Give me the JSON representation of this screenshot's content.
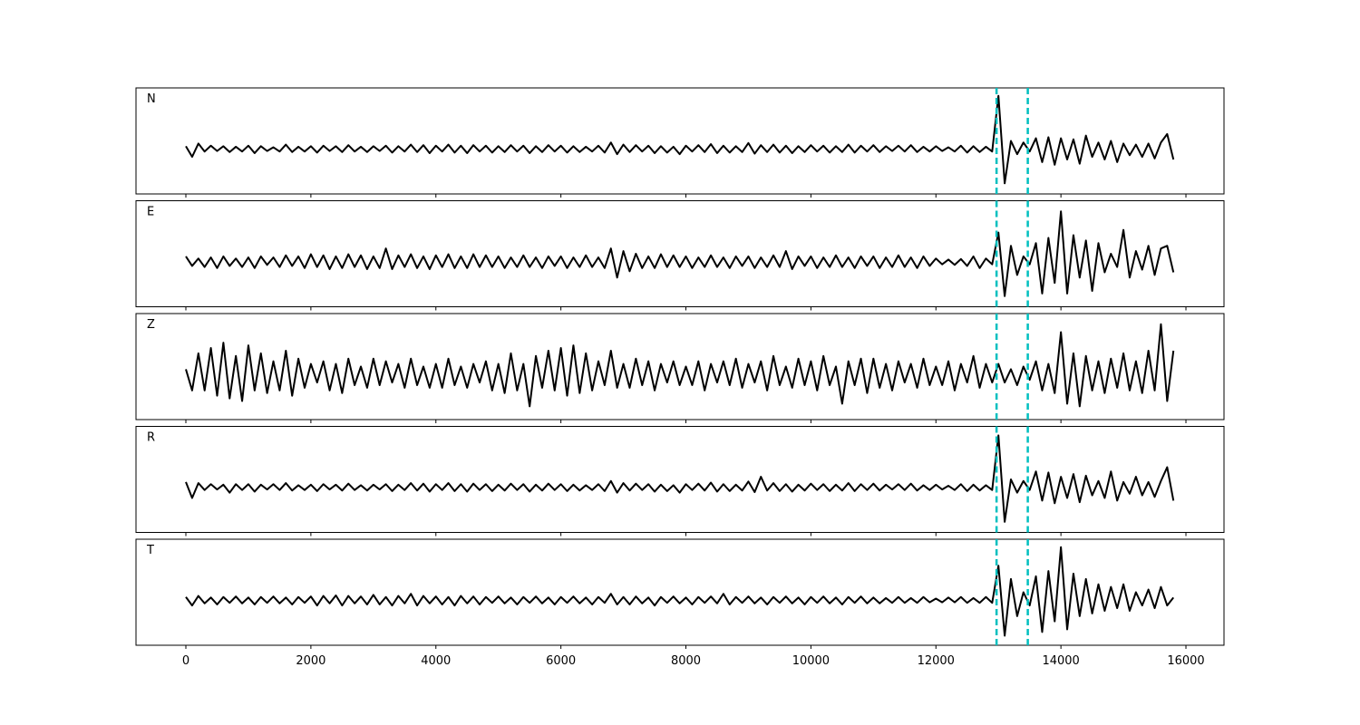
{
  "chart_data": {
    "type": "line",
    "x": [
      0,
      100,
      200,
      300,
      400,
      500,
      600,
      700,
      800,
      900,
      1000,
      1100,
      1200,
      1300,
      1400,
      1500,
      1600,
      1700,
      1800,
      1900,
      2000,
      2100,
      2200,
      2300,
      2400,
      2500,
      2600,
      2700,
      2800,
      2900,
      3000,
      3100,
      3200,
      3300,
      3400,
      3500,
      3600,
      3700,
      3800,
      3900,
      4000,
      4100,
      4200,
      4300,
      4400,
      4500,
      4600,
      4700,
      4800,
      4900,
      5000,
      5100,
      5200,
      5300,
      5400,
      5500,
      5600,
      5700,
      5800,
      5900,
      6000,
      6100,
      6200,
      6300,
      6400,
      6500,
      6600,
      6700,
      6800,
      6900,
      7000,
      7100,
      7200,
      7300,
      7400,
      7500,
      7600,
      7700,
      7800,
      7900,
      8000,
      8100,
      8200,
      8300,
      8400,
      8500,
      8600,
      8700,
      8800,
      8900,
      9000,
      9100,
      9200,
      9300,
      9400,
      9500,
      9600,
      9700,
      9800,
      9900,
      10000,
      10100,
      10200,
      10300,
      10400,
      10500,
      10600,
      10700,
      10800,
      10900,
      11000,
      11100,
      11200,
      11300,
      11400,
      11500,
      11600,
      11700,
      11800,
      11900,
      12000,
      12100,
      12200,
      12300,
      12400,
      12500,
      12600,
      12700,
      12800,
      12900,
      13000,
      13100,
      13200,
      13300,
      13400,
      13500,
      13600,
      13700,
      13800,
      13900,
      14000,
      14100,
      14200,
      14300,
      14400,
      14500,
      14600,
      14700,
      14800,
      14900,
      15000,
      15100,
      15200,
      15300,
      15400,
      15500,
      15600,
      15700,
      15800
    ],
    "series": [
      {
        "name": "N",
        "color": "#000000",
        "values": [
          0.05,
          -0.15,
          0.1,
          -0.05,
          0.06,
          -0.04,
          0.05,
          -0.06,
          0.04,
          -0.05,
          0.06,
          -0.08,
          0.05,
          -0.04,
          0.03,
          -0.05,
          0.08,
          -0.06,
          0.04,
          -0.05,
          0.05,
          -0.07,
          0.06,
          -0.04,
          0.05,
          -0.06,
          0.07,
          -0.05,
          0.04,
          -0.06,
          0.05,
          -0.04,
          0.06,
          -0.07,
          0.05,
          -0.05,
          0.08,
          -0.06,
          0.07,
          -0.08,
          0.06,
          -0.05,
          0.08,
          -0.07,
          0.06,
          -0.08,
          0.07,
          -0.05,
          0.06,
          -0.07,
          0.05,
          -0.06,
          0.07,
          -0.05,
          0.06,
          -0.08,
          0.05,
          -0.06,
          0.07,
          -0.05,
          0.06,
          -0.07,
          0.05,
          -0.06,
          0.04,
          -0.05,
          0.06,
          -0.07,
          0.12,
          -0.1,
          0.08,
          -0.06,
          0.07,
          -0.05,
          0.06,
          -0.08,
          0.05,
          -0.07,
          0.04,
          -0.1,
          0.06,
          -0.05,
          0.07,
          -0.06,
          0.09,
          -0.08,
          0.06,
          -0.07,
          0.05,
          -0.06,
          0.11,
          -0.09,
          0.07,
          -0.06,
          0.08,
          -0.07,
          0.06,
          -0.08,
          0.05,
          -0.06,
          0.07,
          -0.05,
          0.06,
          -0.07,
          0.05,
          -0.06,
          0.08,
          -0.07,
          0.06,
          -0.05,
          0.07,
          -0.06,
          0.05,
          -0.04,
          0.06,
          -0.05,
          0.07,
          -0.06,
          0.04,
          -0.05,
          0.05,
          -0.04,
          0.03,
          -0.05,
          0.06,
          -0.07,
          0.05,
          -0.06,
          0.04,
          -0.05,
          1.0,
          -0.65,
          0.15,
          -0.1,
          0.12,
          -0.05,
          0.2,
          -0.25,
          0.22,
          -0.3,
          0.2,
          -0.2,
          0.18,
          -0.28,
          0.25,
          -0.15,
          0.12,
          -0.2,
          0.15,
          -0.25,
          0.1,
          -0.12,
          0.08,
          -0.15,
          0.1,
          -0.18,
          0.12,
          0.28,
          -0.2
        ]
      },
      {
        "name": "E",
        "color": "#000000",
        "values": [
          0.1,
          -0.08,
          0.06,
          -0.1,
          0.08,
          -0.12,
          0.1,
          -0.08,
          0.06,
          -0.1,
          0.08,
          -0.12,
          0.1,
          -0.06,
          0.08,
          -0.1,
          0.12,
          -0.08,
          0.1,
          -0.12,
          0.14,
          -0.1,
          0.12,
          -0.14,
          0.1,
          -0.12,
          0.14,
          -0.1,
          0.12,
          -0.14,
          0.1,
          -0.12,
          0.25,
          -0.14,
          0.12,
          -0.1,
          0.14,
          -0.12,
          0.1,
          -0.14,
          0.12,
          -0.1,
          0.14,
          -0.12,
          0.1,
          -0.12,
          0.14,
          -0.1,
          0.12,
          -0.1,
          0.1,
          -0.12,
          0.08,
          -0.1,
          0.12,
          -0.1,
          0.08,
          -0.12,
          0.1,
          -0.08,
          0.1,
          -0.12,
          0.08,
          -0.1,
          0.12,
          -0.1,
          0.08,
          -0.12,
          0.25,
          -0.3,
          0.2,
          -0.18,
          0.15,
          -0.12,
          0.1,
          -0.12,
          0.14,
          -0.1,
          0.12,
          -0.1,
          0.1,
          -0.12,
          0.08,
          -0.1,
          0.12,
          -0.1,
          0.08,
          -0.12,
          0.1,
          -0.08,
          0.1,
          -0.12,
          0.08,
          -0.1,
          0.12,
          -0.1,
          0.2,
          -0.14,
          0.1,
          -0.08,
          0.1,
          -0.12,
          0.08,
          -0.1,
          0.12,
          -0.1,
          0.08,
          -0.12,
          0.1,
          -0.08,
          0.1,
          -0.12,
          0.08,
          -0.1,
          0.12,
          -0.1,
          0.08,
          -0.12,
          0.1,
          -0.08,
          0.06,
          -0.05,
          0.04,
          -0.06,
          0.05,
          -0.08,
          0.1,
          -0.12,
          0.06,
          -0.05,
          0.55,
          -0.65,
          0.3,
          -0.25,
          0.1,
          -0.05,
          0.35,
          -0.6,
          0.45,
          -0.4,
          0.95,
          -0.6,
          0.5,
          -0.3,
          0.4,
          -0.55,
          0.35,
          -0.2,
          0.15,
          -0.1,
          0.6,
          -0.3,
          0.2,
          -0.15,
          0.3,
          -0.25,
          0.25,
          0.3,
          -0.2
        ]
      },
      {
        "name": "Z",
        "color": "#000000",
        "values": [
          0.1,
          -0.3,
          0.4,
          -0.3,
          0.5,
          -0.4,
          0.6,
          -0.45,
          0.35,
          -0.5,
          0.55,
          -0.3,
          0.4,
          -0.35,
          0.25,
          -0.3,
          0.45,
          -0.4,
          0.3,
          -0.25,
          0.2,
          -0.15,
          0.25,
          -0.3,
          0.2,
          -0.35,
          0.3,
          -0.2,
          0.15,
          -0.25,
          0.3,
          -0.2,
          0.25,
          -0.15,
          0.2,
          -0.25,
          0.3,
          -0.2,
          0.15,
          -0.25,
          0.2,
          -0.25,
          0.3,
          -0.2,
          0.15,
          -0.25,
          0.2,
          -0.15,
          0.25,
          -0.3,
          0.2,
          -0.35,
          0.4,
          -0.3,
          0.2,
          -0.6,
          0.35,
          -0.25,
          0.45,
          -0.3,
          0.5,
          -0.4,
          0.55,
          -0.35,
          0.4,
          -0.3,
          0.25,
          -0.2,
          0.45,
          -0.25,
          0.2,
          -0.25,
          0.3,
          -0.2,
          0.25,
          -0.3,
          0.2,
          -0.15,
          0.25,
          -0.2,
          0.15,
          -0.2,
          0.25,
          -0.3,
          0.2,
          -0.15,
          0.25,
          -0.2,
          0.3,
          -0.25,
          0.2,
          -0.15,
          0.25,
          -0.3,
          0.35,
          -0.2,
          0.15,
          -0.25,
          0.3,
          -0.2,
          0.25,
          -0.3,
          0.35,
          -0.2,
          0.15,
          -0.55,
          0.25,
          -0.2,
          0.3,
          -0.35,
          0.3,
          -0.25,
          0.2,
          -0.3,
          0.25,
          -0.15,
          0.2,
          -0.25,
          0.3,
          -0.2,
          0.15,
          -0.2,
          0.25,
          -0.3,
          0.2,
          -0.15,
          0.35,
          -0.25,
          0.2,
          -0.15,
          0.2,
          -0.15,
          0.1,
          -0.2,
          0.15,
          -0.1,
          0.25,
          -0.3,
          0.2,
          -0.35,
          0.8,
          -0.55,
          0.4,
          -0.6,
          0.35,
          -0.3,
          0.25,
          -0.35,
          0.3,
          -0.25,
          0.4,
          -0.3,
          0.25,
          -0.35,
          0.45,
          -0.3,
          0.95,
          -0.5,
          0.45
        ]
      },
      {
        "name": "R",
        "color": "#000000",
        "values": [
          0.1,
          -0.2,
          0.08,
          -0.05,
          0.06,
          -0.04,
          0.05,
          -0.1,
          0.06,
          -0.05,
          0.06,
          -0.08,
          0.05,
          -0.04,
          0.06,
          -0.05,
          0.08,
          -0.06,
          0.04,
          -0.05,
          0.05,
          -0.07,
          0.06,
          -0.04,
          0.05,
          -0.06,
          0.07,
          -0.05,
          0.04,
          -0.06,
          0.05,
          -0.04,
          0.06,
          -0.07,
          0.05,
          -0.05,
          0.08,
          -0.06,
          0.07,
          -0.08,
          0.06,
          -0.05,
          0.08,
          -0.07,
          0.06,
          -0.08,
          0.07,
          -0.05,
          0.06,
          -0.07,
          0.05,
          -0.06,
          0.07,
          -0.05,
          0.06,
          -0.08,
          0.05,
          -0.06,
          0.07,
          -0.05,
          0.06,
          -0.07,
          0.05,
          -0.06,
          0.04,
          -0.05,
          0.06,
          -0.07,
          0.12,
          -0.1,
          0.08,
          -0.06,
          0.07,
          -0.05,
          0.06,
          -0.08,
          0.05,
          -0.07,
          0.04,
          -0.1,
          0.06,
          -0.05,
          0.07,
          -0.06,
          0.09,
          -0.08,
          0.06,
          -0.07,
          0.05,
          -0.06,
          0.11,
          -0.09,
          0.2,
          -0.06,
          0.08,
          -0.07,
          0.06,
          -0.08,
          0.05,
          -0.06,
          0.07,
          -0.05,
          0.06,
          -0.07,
          0.05,
          -0.06,
          0.08,
          -0.07,
          0.06,
          -0.05,
          0.07,
          -0.06,
          0.05,
          -0.04,
          0.06,
          -0.05,
          0.07,
          -0.06,
          0.04,
          -0.05,
          0.05,
          -0.04,
          0.03,
          -0.05,
          0.06,
          -0.07,
          0.05,
          -0.06,
          0.04,
          -0.05,
          0.98,
          -0.65,
          0.15,
          -0.1,
          0.12,
          -0.05,
          0.3,
          -0.25,
          0.28,
          -0.3,
          0.2,
          -0.2,
          0.25,
          -0.28,
          0.22,
          -0.15,
          0.12,
          -0.2,
          0.3,
          -0.25,
          0.1,
          -0.12,
          0.2,
          -0.15,
          0.1,
          -0.18,
          0.12,
          0.38,
          -0.25
        ]
      },
      {
        "name": "T",
        "color": "#000000",
        "values": [
          0.06,
          -0.1,
          0.08,
          -0.06,
          0.05,
          -0.08,
          0.06,
          -0.05,
          0.07,
          -0.06,
          0.05,
          -0.08,
          0.06,
          -0.05,
          0.07,
          -0.06,
          0.05,
          -0.08,
          0.06,
          -0.05,
          0.07,
          -0.1,
          0.08,
          -0.06,
          0.09,
          -0.1,
          0.08,
          -0.06,
          0.07,
          -0.08,
          0.1,
          -0.08,
          0.06,
          -0.1,
          0.08,
          -0.06,
          0.12,
          -0.1,
          0.08,
          -0.06,
          0.07,
          -0.08,
          0.06,
          -0.1,
          0.08,
          -0.06,
          0.07,
          -0.08,
          0.06,
          -0.05,
          0.07,
          -0.06,
          0.05,
          -0.08,
          0.06,
          -0.05,
          0.07,
          -0.06,
          0.05,
          -0.08,
          0.06,
          -0.05,
          0.07,
          -0.06,
          0.05,
          -0.08,
          0.06,
          -0.05,
          0.12,
          -0.08,
          0.06,
          -0.08,
          0.07,
          -0.06,
          0.05,
          -0.1,
          0.06,
          -0.05,
          0.07,
          -0.06,
          0.05,
          -0.08,
          0.06,
          -0.05,
          0.07,
          -0.06,
          0.12,
          -0.08,
          0.06,
          -0.05,
          0.07,
          -0.06,
          0.05,
          -0.08,
          0.06,
          -0.05,
          0.07,
          -0.06,
          0.05,
          -0.08,
          0.06,
          -0.05,
          0.07,
          -0.06,
          0.05,
          -0.08,
          0.06,
          -0.05,
          0.07,
          -0.06,
          0.05,
          -0.06,
          0.04,
          -0.05,
          0.06,
          -0.05,
          0.04,
          -0.05,
          0.06,
          -0.04,
          0.03,
          -0.04,
          0.05,
          -0.04,
          0.06,
          -0.05,
          0.04,
          -0.05,
          0.06,
          -0.05,
          0.65,
          -0.67,
          0.4,
          -0.3,
          0.15,
          -0.1,
          0.45,
          -0.6,
          0.55,
          -0.4,
          1.0,
          -0.55,
          0.5,
          -0.3,
          0.4,
          -0.25,
          0.3,
          -0.2,
          0.25,
          -0.15,
          0.3,
          -0.2,
          0.15,
          -0.1,
          0.2,
          -0.15,
          0.25,
          -0.1,
          0.05
        ]
      }
    ],
    "xlim": [
      -798,
      16609
    ],
    "xticks": [
      0,
      2000,
      4000,
      6000,
      8000,
      10000,
      12000,
      14000,
      16000
    ],
    "ylim": [
      -0.85,
      1.15
    ],
    "vlines": [
      12970,
      13470
    ],
    "vline_color": "#00bfbf"
  }
}
